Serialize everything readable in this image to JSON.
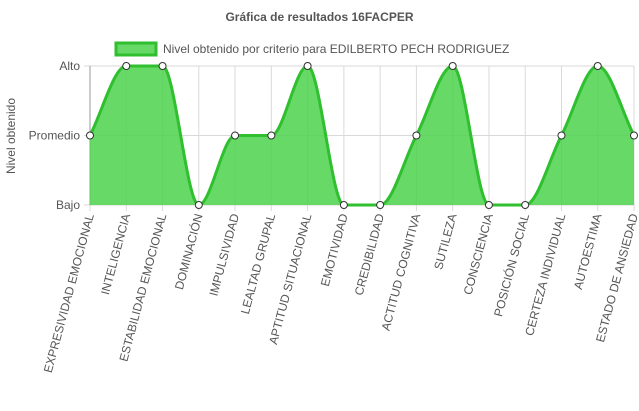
{
  "colors": {
    "fill": "#4cd24c",
    "line": "#2fbf2f",
    "text": "#555555",
    "grid": "#d9d9d9",
    "point_border": "#333333",
    "point_fill": "#ffffff"
  },
  "chart_data": {
    "type": "area",
    "title": "Gráfica de resultados 16FACPER",
    "ylabel": "Nivel obtenido",
    "xlabel": "",
    "legend": "top",
    "grid": true,
    "curve": "smooth",
    "y_levels": [
      "Bajo",
      "Promedio",
      "Alto"
    ],
    "ylim": [
      1,
      3
    ],
    "categories": [
      "EXPRESIVIDAD EMOCIONAL",
      "INTELIGENCIA",
      "ESTABILIDAD EMOCIONAL",
      "DOMINACIÓN",
      "IMPULSIVIDAD",
      "LEALTAD GRUPAL",
      "APTITUD SITUACIONAL",
      "EMOTIVIDAD",
      "CREDIBILIDAD",
      "ACTITUD COGNITIVA",
      "SUTILEZA",
      "CONSCIENCIA",
      "POSICIÓN SOCIAL",
      "CERTEZA INDIVIDUAL",
      "AUTOESTIMA",
      "ESTADO DE ANSIEDAD"
    ],
    "series": [
      {
        "name": "Nivel obtenido por criterio para EDILBERTO PECH RODRIGUEZ",
        "values": [
          2,
          3,
          3,
          1,
          2,
          2,
          3,
          1,
          1,
          2,
          3,
          1,
          1,
          2,
          3,
          2
        ]
      }
    ]
  }
}
